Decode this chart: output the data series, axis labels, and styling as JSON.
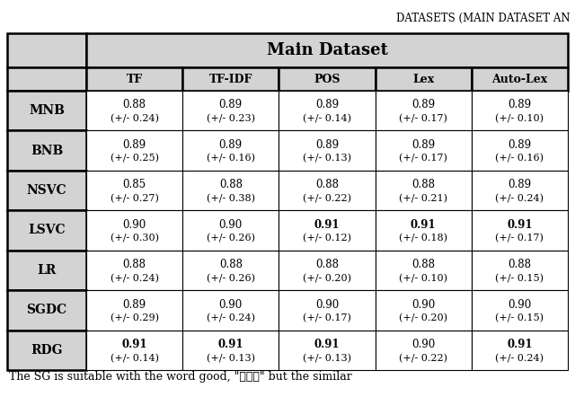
{
  "title": "DATASETS (MAIN DATASET AN",
  "header_main": "Main Dataset",
  "col_headers": [
    "TF",
    "TF-IDF",
    "POS",
    "Lex",
    "Auto-Lex"
  ],
  "row_headers": [
    "MNB",
    "BNB",
    "NSVC",
    "LSVC",
    "LR",
    "SGDC",
    "RDG"
  ],
  "values": [
    [
      "0.88",
      "0.89",
      "0.89",
      "0.89",
      "0.89"
    ],
    [
      "0.89",
      "0.89",
      "0.89",
      "0.89",
      "0.89"
    ],
    [
      "0.85",
      "0.88",
      "0.88",
      "0.88",
      "0.89"
    ],
    [
      "0.90",
      "0.90",
      "0.91",
      "0.91",
      "0.91"
    ],
    [
      "0.88",
      "0.88",
      "0.88",
      "0.88",
      "0.88"
    ],
    [
      "0.89",
      "0.90",
      "0.90",
      "0.90",
      "0.90"
    ],
    [
      "0.91",
      "0.91",
      "0.91",
      "0.90",
      "0.91"
    ]
  ],
  "errors": [
    [
      "(+/- 0.24)",
      "(+/- 0.23)",
      "(+/- 0.14)",
      "(+/- 0.17)",
      "(+/- 0.10)"
    ],
    [
      "(+/- 0.25)",
      "(+/- 0.16)",
      "(+/- 0.13)",
      "(+/- 0.17)",
      "(+/- 0.16)"
    ],
    [
      "(+/- 0.27)",
      "(+/- 0.38)",
      "(+/- 0.22)",
      "(+/- 0.21)",
      "(+/- 0.24)"
    ],
    [
      "(+/- 0.30)",
      "(+/- 0.26)",
      "(+/- 0.12)",
      "(+/- 0.18)",
      "(+/- 0.17)"
    ],
    [
      "(+/- 0.24)",
      "(+/- 0.26)",
      "(+/- 0.20)",
      "(+/- 0.10)",
      "(+/- 0.15)"
    ],
    [
      "(+/- 0.29)",
      "(+/- 0.24)",
      "(+/- 0.17)",
      "(+/- 0.20)",
      "(+/- 0.15)"
    ],
    [
      "(+/- 0.14)",
      "(+/- 0.13)",
      "(+/- 0.13)",
      "(+/- 0.22)",
      "(+/- 0.24)"
    ]
  ],
  "bold_cells": [
    [
      false,
      false,
      false,
      false,
      false
    ],
    [
      false,
      false,
      false,
      false,
      false
    ],
    [
      false,
      false,
      false,
      false,
      false
    ],
    [
      false,
      false,
      true,
      true,
      true
    ],
    [
      false,
      false,
      false,
      false,
      false
    ],
    [
      false,
      false,
      false,
      false,
      false
    ],
    [
      true,
      true,
      true,
      false,
      true
    ]
  ],
  "header_bg": "#d3d3d3",
  "data_bg_white": "#ffffff",
  "border_color": "#000000",
  "text_color": "#000000",
  "title_fontsize": 8.5,
  "main_header_fontsize": 13,
  "col_header_fontsize": 9,
  "row_header_fontsize": 10,
  "value_fontsize": 8.5,
  "error_fontsize": 8,
  "caption_text": "The SG is suitable with the word good, \"جيد\" but the similar"
}
